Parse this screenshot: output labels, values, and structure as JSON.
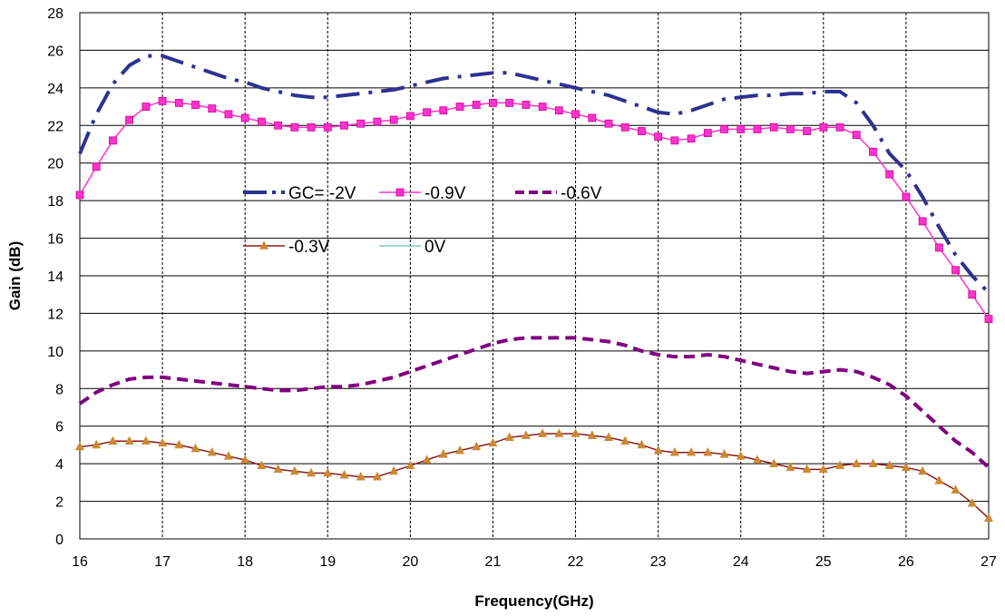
{
  "chart_data": {
    "type": "line",
    "xlabel": "Frequency(GHz)",
    "ylabel": "Gain  (dB)",
    "xlim": [
      16,
      27
    ],
    "ylim": [
      0,
      28
    ],
    "xticks": [
      16,
      17,
      18,
      19,
      20,
      21,
      22,
      23,
      24,
      25,
      26,
      27
    ],
    "yticks": [
      0,
      2,
      4,
      6,
      8,
      10,
      12,
      14,
      16,
      18,
      20,
      22,
      24,
      26,
      28
    ],
    "grid": "on",
    "legend_placement": "inside-left",
    "series": [
      {
        "name": "GC= -2V",
        "color": "#2e3192",
        "style": "dashdot",
        "marker": "none",
        "x": [
          16,
          16.2,
          16.4,
          16.6,
          16.8,
          17,
          17.2,
          17.4,
          17.6,
          17.8,
          18,
          18.2,
          18.4,
          18.6,
          18.8,
          19,
          19.2,
          19.4,
          19.6,
          19.8,
          20,
          20.2,
          20.4,
          20.6,
          20.8,
          21,
          21.2,
          21.4,
          21.6,
          21.8,
          22,
          22.2,
          22.4,
          22.6,
          22.8,
          23,
          23.2,
          23.4,
          23.6,
          23.8,
          24,
          24.2,
          24.4,
          24.6,
          24.8,
          25,
          25.2,
          25.4,
          25.6,
          25.8,
          26,
          26.2,
          26.4,
          26.6,
          26.8,
          27
        ],
        "y": [
          20.5,
          22.6,
          24.2,
          25.2,
          25.7,
          25.7,
          25.4,
          25.1,
          24.8,
          24.5,
          24.3,
          24.0,
          23.8,
          23.6,
          23.5,
          23.5,
          23.6,
          23.7,
          23.8,
          23.9,
          24.1,
          24.3,
          24.5,
          24.6,
          24.7,
          24.8,
          24.8,
          24.6,
          24.4,
          24.2,
          24.0,
          23.8,
          23.6,
          23.3,
          23.0,
          22.7,
          22.6,
          22.8,
          23.1,
          23.4,
          23.5,
          23.6,
          23.6,
          23.7,
          23.7,
          23.8,
          23.8,
          23.2,
          22.0,
          20.5,
          19.6,
          18.2,
          16.6,
          15.1,
          14.0,
          13.1
        ]
      },
      {
        "name": "-0.9V",
        "color": "#ff33cc",
        "style": "solid",
        "marker": "square",
        "x": [
          16,
          16.2,
          16.4,
          16.6,
          16.8,
          17,
          17.2,
          17.4,
          17.6,
          17.8,
          18,
          18.2,
          18.4,
          18.6,
          18.8,
          19,
          19.2,
          19.4,
          19.6,
          19.8,
          20,
          20.2,
          20.4,
          20.6,
          20.8,
          21,
          21.2,
          21.4,
          21.6,
          21.8,
          22,
          22.2,
          22.4,
          22.6,
          22.8,
          23,
          23.2,
          23.4,
          23.6,
          23.8,
          24,
          24.2,
          24.4,
          24.6,
          24.8,
          25,
          25.2,
          25.4,
          25.6,
          25.8,
          26,
          26.2,
          26.4,
          26.6,
          26.8,
          27
        ],
        "y": [
          18.3,
          19.8,
          21.2,
          22.3,
          23.0,
          23.3,
          23.2,
          23.1,
          22.9,
          22.6,
          22.4,
          22.2,
          22.0,
          21.9,
          21.9,
          21.9,
          22.0,
          22.1,
          22.2,
          22.3,
          22.5,
          22.7,
          22.8,
          23.0,
          23.1,
          23.2,
          23.2,
          23.1,
          23.0,
          22.8,
          22.6,
          22.4,
          22.1,
          21.9,
          21.7,
          21.4,
          21.2,
          21.3,
          21.6,
          21.8,
          21.8,
          21.8,
          21.9,
          21.8,
          21.7,
          21.9,
          21.9,
          21.5,
          20.6,
          19.4,
          18.2,
          16.9,
          15.5,
          14.3,
          13.0,
          11.7
        ]
      },
      {
        "name": "-0.6V",
        "color": "#800080",
        "style": "dashed",
        "marker": "none",
        "x": [
          16,
          16.2,
          16.4,
          16.6,
          16.8,
          17,
          17.2,
          17.4,
          17.6,
          17.8,
          18,
          18.2,
          18.4,
          18.6,
          18.8,
          19,
          19.2,
          19.4,
          19.6,
          19.8,
          20,
          20.2,
          20.4,
          20.6,
          20.8,
          21,
          21.2,
          21.4,
          21.6,
          21.8,
          22,
          22.2,
          22.4,
          22.6,
          22.8,
          23,
          23.2,
          23.4,
          23.6,
          23.8,
          24,
          24.2,
          24.4,
          24.6,
          24.8,
          25,
          25.2,
          25.4,
          25.6,
          25.8,
          26,
          26.2,
          26.4,
          26.6,
          26.8,
          27
        ],
        "y": [
          7.2,
          7.8,
          8.2,
          8.5,
          8.6,
          8.6,
          8.5,
          8.4,
          8.3,
          8.2,
          8.1,
          8.0,
          7.9,
          7.9,
          8.0,
          8.1,
          8.1,
          8.2,
          8.4,
          8.6,
          8.9,
          9.2,
          9.5,
          9.8,
          10.1,
          10.4,
          10.6,
          10.7,
          10.7,
          10.7,
          10.7,
          10.6,
          10.5,
          10.3,
          10.0,
          9.8,
          9.7,
          9.7,
          9.8,
          9.7,
          9.5,
          9.3,
          9.1,
          8.9,
          8.8,
          8.9,
          9.0,
          8.9,
          8.6,
          8.2,
          7.6,
          6.8,
          6.0,
          5.2,
          4.6,
          3.8
        ]
      },
      {
        "name": "-0.3V",
        "color": "#8b1a1a",
        "style": "solid",
        "marker": "triangle",
        "marker_color": "#cc8833",
        "x": [
          16,
          16.2,
          16.4,
          16.6,
          16.8,
          17,
          17.2,
          17.4,
          17.6,
          17.8,
          18,
          18.2,
          18.4,
          18.6,
          18.8,
          19,
          19.2,
          19.4,
          19.6,
          19.8,
          20,
          20.2,
          20.4,
          20.6,
          20.8,
          21,
          21.2,
          21.4,
          21.6,
          21.8,
          22,
          22.2,
          22.4,
          22.6,
          22.8,
          23,
          23.2,
          23.4,
          23.6,
          23.8,
          24,
          24.2,
          24.4,
          24.6,
          24.8,
          25,
          25.2,
          25.4,
          25.6,
          25.8,
          26,
          26.2,
          26.4,
          26.6,
          26.8,
          27
        ],
        "y": [
          4.9,
          5.0,
          5.2,
          5.2,
          5.2,
          5.1,
          5.0,
          4.8,
          4.6,
          4.4,
          4.2,
          3.9,
          3.7,
          3.6,
          3.5,
          3.5,
          3.4,
          3.3,
          3.3,
          3.6,
          3.9,
          4.2,
          4.5,
          4.7,
          4.9,
          5.1,
          5.4,
          5.5,
          5.6,
          5.6,
          5.6,
          5.5,
          5.4,
          5.2,
          5.0,
          4.7,
          4.6,
          4.6,
          4.6,
          4.5,
          4.4,
          4.2,
          4.0,
          3.8,
          3.7,
          3.7,
          3.9,
          4.0,
          4.0,
          3.9,
          3.8,
          3.6,
          3.1,
          2.6,
          1.9,
          1.1
        ]
      },
      {
        "name": "0V",
        "color": "#7fc7c7",
        "style": "solid",
        "marker": "none",
        "x": [],
        "y": []
      }
    ]
  }
}
